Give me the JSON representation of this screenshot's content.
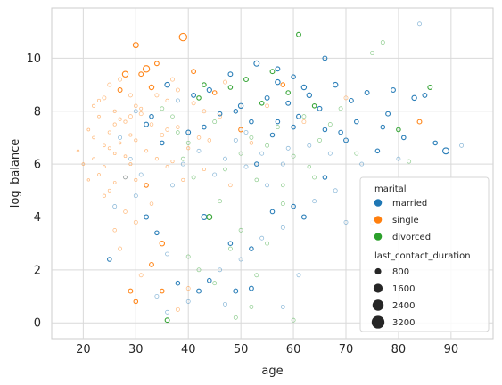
{
  "chart_data": {
    "type": "scatter",
    "title": "",
    "xlabel": "age",
    "ylabel": "log_balance",
    "xlim": [
      14,
      98
    ],
    "ylim": [
      -0.6,
      11.9
    ],
    "xticks": [
      20,
      30,
      40,
      50,
      60,
      70,
      80,
      90
    ],
    "yticks": [
      0,
      2,
      4,
      6,
      8,
      10
    ],
    "grid": true,
    "marker": "hollow-circle",
    "hue": {
      "title": "marital",
      "entries": [
        {
          "label": "married",
          "color": "#1f77b4"
        },
        {
          "label": "single",
          "color": "#ff7f0e"
        },
        {
          "label": "divorced",
          "color": "#2ca02c"
        }
      ]
    },
    "size": {
      "title": "last_contact_duration",
      "entries": [
        {
          "label": "800",
          "value": 800
        },
        {
          "label": "1600",
          "value": 1600
        },
        {
          "label": "2400",
          "value": 2400
        },
        {
          "label": "3200",
          "value": 3200
        }
      ]
    },
    "legend_position": "lower-right",
    "series": [
      {
        "name": "single",
        "points": [
          [
            24,
            8.5,
            300
          ],
          [
            25,
            7.2,
            200
          ],
          [
            26,
            6.4,
            150
          ],
          [
            27,
            8.8,
            400
          ],
          [
            28,
            5.5,
            250
          ],
          [
            28,
            9.4,
            700
          ],
          [
            29,
            7.8,
            300
          ],
          [
            30,
            6.9,
            200
          ],
          [
            30,
            10.5,
            600
          ],
          [
            31,
            8.1,
            180
          ],
          [
            32,
            9.6,
            900
          ],
          [
            32,
            5.2,
            350
          ],
          [
            33,
            7.5,
            250
          ],
          [
            33,
            8.9,
            500
          ],
          [
            34,
            6.2,
            200
          ],
          [
            34,
            9.8,
            400
          ],
          [
            35,
            7.1,
            300
          ],
          [
            35,
            3.0,
            500
          ],
          [
            36,
            8.4,
            220
          ],
          [
            36,
            5.9,
            180
          ],
          [
            37,
            9.2,
            300
          ],
          [
            38,
            7.4,
            250
          ],
          [
            39,
            10.8,
            1200
          ],
          [
            40,
            6.6,
            200
          ],
          [
            41,
            8.3,
            300
          ],
          [
            42,
            7.0,
            250
          ],
          [
            43,
            5.8,
            200
          ],
          [
            45,
            8.7,
            350
          ],
          [
            47,
            9.1,
            300
          ],
          [
            50,
            7.3,
            400
          ],
          [
            52,
            6.8,
            250
          ],
          [
            55,
            8.2,
            300
          ],
          [
            58,
            9.0,
            350
          ],
          [
            62,
            7.6,
            300
          ],
          [
            20,
            6.0,
            150
          ],
          [
            21,
            7.3,
            150
          ],
          [
            22,
            8.2,
            200
          ],
          [
            23,
            5.6,
            150
          ],
          [
            19,
            6.5,
            120
          ],
          [
            24,
            4.8,
            200
          ],
          [
            25,
            9.0,
            300
          ],
          [
            26,
            3.5,
            250
          ],
          [
            27,
            2.8,
            300
          ],
          [
            29,
            1.2,
            400
          ],
          [
            30,
            0.8,
            350
          ],
          [
            31,
            1.8,
            300
          ],
          [
            33,
            2.2,
            400
          ],
          [
            35,
            1.2,
            350
          ],
          [
            38,
            0.5,
            300
          ],
          [
            40,
            1.3,
            300
          ],
          [
            26,
            8.0,
            200
          ],
          [
            27,
            6.8,
            150
          ],
          [
            28,
            7.6,
            200
          ],
          [
            29,
            6.0,
            180
          ],
          [
            30,
            5.4,
            200
          ],
          [
            31,
            7.9,
            300
          ],
          [
            32,
            6.5,
            200
          ],
          [
            33,
            4.5,
            250
          ],
          [
            34,
            8.6,
            300
          ],
          [
            36,
            7.3,
            250
          ],
          [
            37,
            6.1,
            200
          ],
          [
            38,
            8.8,
            300
          ],
          [
            39,
            5.4,
            200
          ],
          [
            41,
            9.5,
            400
          ],
          [
            43,
            8.0,
            300
          ],
          [
            44,
            6.9,
            250
          ],
          [
            46,
            7.8,
            300
          ],
          [
            48,
            5.2,
            250
          ],
          [
            84,
            7.6,
            400
          ],
          [
            70,
            8.5,
            300
          ],
          [
            22,
            7.0,
            150
          ],
          [
            23,
            8.4,
            200
          ],
          [
            24,
            6.7,
            150
          ],
          [
            25,
            5.0,
            180
          ],
          [
            26,
            7.5,
            200
          ],
          [
            27,
            9.2,
            300
          ],
          [
            28,
            4.2,
            250
          ],
          [
            29,
            8.6,
            300
          ],
          [
            30,
            3.8,
            300
          ],
          [
            31,
            9.4,
            400
          ],
          [
            21,
            5.4,
            120
          ],
          [
            22,
            6.2,
            150
          ],
          [
            23,
            7.8,
            150
          ],
          [
            24,
            5.9,
            150
          ],
          [
            25,
            6.6,
            180
          ],
          [
            26,
            5.3,
            150
          ],
          [
            27,
            7.7,
            200
          ],
          [
            28,
            6.3,
            150
          ],
          [
            29,
            7.1,
            200
          ],
          [
            30,
            8.2,
            250
          ]
        ]
      },
      {
        "name": "married",
        "points": [
          [
            30,
            8.0,
            300
          ],
          [
            32,
            7.5,
            400
          ],
          [
            35,
            6.8,
            350
          ],
          [
            36,
            9.0,
            500
          ],
          [
            38,
            8.4,
            300
          ],
          [
            40,
            7.2,
            400
          ],
          [
            42,
            6.5,
            300
          ],
          [
            44,
            8.8,
            450
          ],
          [
            45,
            5.6,
            300
          ],
          [
            46,
            7.9,
            350
          ],
          [
            48,
            9.4,
            400
          ],
          [
            49,
            6.9,
            300
          ],
          [
            50,
            8.2,
            500
          ],
          [
            51,
            5.9,
            300
          ],
          [
            52,
            7.6,
            350
          ],
          [
            53,
            9.8,
            600
          ],
          [
            54,
            6.4,
            300
          ],
          [
            55,
            8.5,
            400
          ],
          [
            56,
            7.1,
            350
          ],
          [
            57,
            9.1,
            500
          ],
          [
            58,
            6.0,
            300
          ],
          [
            59,
            8.3,
            400
          ],
          [
            60,
            7.4,
            350
          ],
          [
            62,
            8.9,
            500
          ],
          [
            63,
            6.7,
            300
          ],
          [
            65,
            8.1,
            400
          ],
          [
            66,
            7.3,
            350
          ],
          [
            68,
            9.0,
            500
          ],
          [
            70,
            6.9,
            400
          ],
          [
            71,
            8.4,
            400
          ],
          [
            72,
            7.6,
            350
          ],
          [
            74,
            8.7,
            400
          ],
          [
            76,
            6.5,
            350
          ],
          [
            78,
            7.9,
            400
          ],
          [
            80,
            6.2,
            300
          ],
          [
            83,
            8.5,
            500
          ],
          [
            84,
            11.3,
            300
          ],
          [
            89,
            6.5,
            800
          ],
          [
            92,
            6.7,
            300
          ],
          [
            75,
            3.8,
            300
          ],
          [
            70,
            3.8,
            300
          ],
          [
            68,
            5.0,
            300
          ],
          [
            66,
            5.5,
            350
          ],
          [
            64,
            4.6,
            300
          ],
          [
            62,
            4.0,
            400
          ],
          [
            60,
            4.4,
            350
          ],
          [
            58,
            3.6,
            300
          ],
          [
            56,
            4.2,
            350
          ],
          [
            54,
            3.2,
            300
          ],
          [
            52,
            2.8,
            350
          ],
          [
            50,
            2.4,
            300
          ],
          [
            48,
            3.0,
            350
          ],
          [
            46,
            2.0,
            300
          ],
          [
            44,
            1.6,
            350
          ],
          [
            42,
            1.2,
            400
          ],
          [
            40,
            0.8,
            300
          ],
          [
            38,
            1.5,
            350
          ],
          [
            36,
            2.6,
            300
          ],
          [
            34,
            3.4,
            350
          ],
          [
            32,
            4.0,
            400
          ],
          [
            30,
            4.8,
            300
          ],
          [
            28,
            5.5,
            250
          ],
          [
            26,
            4.4,
            300
          ],
          [
            25,
            2.4,
            350
          ],
          [
            27,
            7.0,
            300
          ],
          [
            29,
            6.2,
            250
          ],
          [
            31,
            5.6,
            300
          ],
          [
            33,
            7.8,
            350
          ],
          [
            37,
            5.2,
            300
          ],
          [
            39,
            6.0,
            300
          ],
          [
            41,
            8.6,
            400
          ],
          [
            43,
            7.4,
            350
          ],
          [
            47,
            6.2,
            300
          ],
          [
            49,
            8.0,
            350
          ],
          [
            51,
            7.2,
            300
          ],
          [
            53,
            6.0,
            350
          ],
          [
            55,
            5.2,
            300
          ],
          [
            57,
            7.6,
            350
          ],
          [
            59,
            6.6,
            300
          ],
          [
            61,
            7.8,
            400
          ],
          [
            63,
            8.6,
            500
          ],
          [
            67,
            6.4,
            300
          ],
          [
            69,
            7.2,
            350
          ],
          [
            73,
            6.0,
            300
          ],
          [
            77,
            7.4,
            350
          ],
          [
            79,
            8.8,
            400
          ],
          [
            81,
            7.0,
            350
          ],
          [
            85,
            8.6,
            400
          ],
          [
            87,
            6.8,
            350
          ],
          [
            36,
            0.4,
            300
          ],
          [
            47,
            0.7,
            300
          ],
          [
            52,
            1.3,
            400
          ],
          [
            58,
            0.6,
            300
          ],
          [
            61,
            1.8,
            300
          ],
          [
            34,
            1.0,
            300
          ],
          [
            43,
            4.0,
            600
          ],
          [
            49,
            1.2,
            400
          ],
          [
            57,
            9.6,
            400
          ],
          [
            60,
            9.3,
            350
          ],
          [
            66,
            10.0,
            400
          ]
        ]
      },
      {
        "name": "divorced",
        "points": [
          [
            35,
            8.1,
            300
          ],
          [
            38,
            7.2,
            250
          ],
          [
            40,
            6.8,
            300
          ],
          [
            42,
            8.5,
            350
          ],
          [
            44,
            4.0,
            600
          ],
          [
            45,
            7.6,
            300
          ],
          [
            47,
            5.8,
            250
          ],
          [
            48,
            8.9,
            350
          ],
          [
            50,
            6.4,
            300
          ],
          [
            51,
            9.2,
            400
          ],
          [
            52,
            7.0,
            300
          ],
          [
            53,
            5.4,
            250
          ],
          [
            54,
            8.3,
            350
          ],
          [
            55,
            6.7,
            300
          ],
          [
            56,
            9.5,
            400
          ],
          [
            57,
            7.4,
            300
          ],
          [
            58,
            5.2,
            250
          ],
          [
            59,
            8.7,
            350
          ],
          [
            60,
            6.3,
            300
          ],
          [
            61,
            10.9,
            400
          ],
          [
            62,
            7.8,
            300
          ],
          [
            63,
            5.9,
            250
          ],
          [
            64,
            8.2,
            350
          ],
          [
            65,
            6.9,
            300
          ],
          [
            67,
            7.5,
            300
          ],
          [
            69,
            8.1,
            300
          ],
          [
            72,
            6.4,
            300
          ],
          [
            75,
            10.2,
            300
          ],
          [
            77,
            10.6,
            300
          ],
          [
            80,
            7.3,
            350
          ],
          [
            82,
            6.1,
            300
          ],
          [
            86,
            8.9,
            400
          ],
          [
            40,
            2.5,
            300
          ],
          [
            42,
            2.0,
            300
          ],
          [
            45,
            1.5,
            300
          ],
          [
            48,
            2.8,
            300
          ],
          [
            50,
            3.5,
            300
          ],
          [
            53,
            1.8,
            300
          ],
          [
            55,
            3.0,
            300
          ],
          [
            36,
            0.1,
            400
          ],
          [
            49,
            0.2,
            300
          ],
          [
            52,
            0.6,
            300
          ],
          [
            60,
            0.1,
            300
          ],
          [
            46,
            4.6,
            300
          ],
          [
            41,
            5.5,
            300
          ],
          [
            39,
            6.2,
            300
          ],
          [
            37,
            7.8,
            250
          ],
          [
            43,
            9.0,
            350
          ],
          [
            58,
            4.5,
            300
          ],
          [
            64,
            5.5,
            300
          ]
        ]
      }
    ]
  }
}
